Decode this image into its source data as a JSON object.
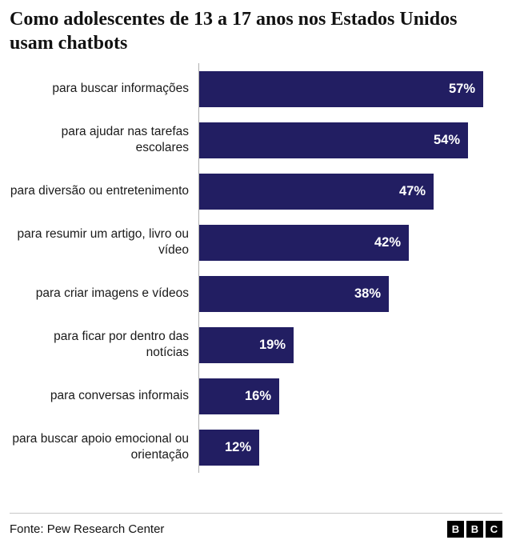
{
  "title": "Como adolescentes de 13 a 17 anos nos Estados Unidos usam chatbots",
  "chart_data": {
    "type": "bar",
    "orientation": "horizontal",
    "title": "Como adolescentes de 13 a 17 anos nos Estados Unidos usam chatbots",
    "categories": [
      "para buscar informações",
      "para ajudar nas tarefas escolares",
      "para diversão ou entretenimento",
      "para resumir um artigo, livro ou vídeo",
      "para criar imagens e vídeos",
      "para ficar por dentro das notícias",
      "para conversas informais",
      "para buscar apoio emocional ou orientação"
    ],
    "values": [
      57,
      54,
      47,
      42,
      38,
      19,
      16,
      12
    ],
    "value_suffix": "%",
    "xlim": [
      0,
      60
    ],
    "bar_color": "#221e62",
    "axis_line_color": "#b0b0b0",
    "legend": "none",
    "grid": "off"
  },
  "footer": {
    "source": "Fonte: Pew Research Center",
    "logo_letters": [
      "B",
      "B",
      "C"
    ]
  }
}
